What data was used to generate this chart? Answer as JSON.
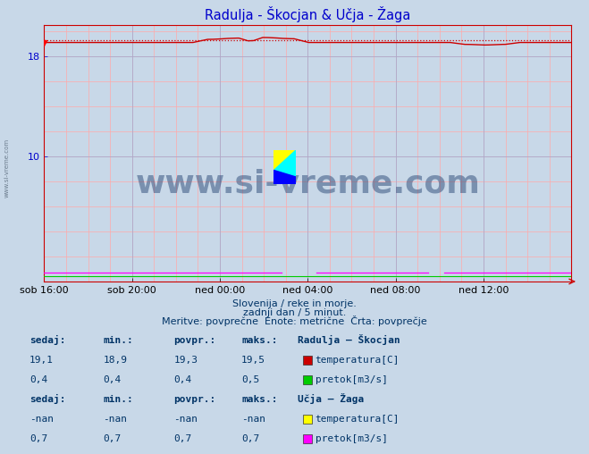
{
  "title": "Radulja - Škocjan & Učja - Žaga",
  "title_color": "#0000cc",
  "bg_color": "#c8d8e8",
  "plot_bg_color": "#c8d8e8",
  "xlabel_ticks": [
    "sob 16:00",
    "sob 20:00",
    "ned 00:00",
    "ned 04:00",
    "ned 08:00",
    "ned 12:00"
  ],
  "yticks": [
    10,
    18
  ],
  "ymin": 0,
  "ymax": 20.5,
  "n_points": 288,
  "line_radulja_temp_color": "#cc0000",
  "line_radulja_pretok_color": "#00cc00",
  "line_ucja_pretok_color": "#ff00ff",
  "avg_line_color": "#cc0000",
  "watermark_text": "www.si-vreme.com",
  "watermark_color": "#1a3a6a",
  "watermark_alpha": 0.45,
  "sidebar_text": "www.si-vreme.com",
  "subtitle1": "Slovenija / reke in morje.",
  "subtitle2": "zadnji dan / 5 minut.",
  "subtitle3": "Meritve: povprečne  Enote: metrične  Črta: povprečje",
  "table_header": [
    "sedaj:",
    "min.:",
    "povpr.:",
    "maks.:"
  ],
  "station1_name": "Radulja – Škocjan",
  "station1_rows": [
    {
      "sedaj": "19,1",
      "min": "18,9",
      "povpr": "19,3",
      "maks": "19,5",
      "label": "temperatura[C]",
      "color": "#cc0000"
    },
    {
      "sedaj": "0,4",
      "min": "0,4",
      "povpr": "0,4",
      "maks": "0,5",
      "label": "pretok[m3/s]",
      "color": "#00cc00"
    }
  ],
  "station2_name": "Učja – Žaga",
  "station2_rows": [
    {
      "sedaj": "-nan",
      "min": "-nan",
      "povpr": "-nan",
      "maks": "-nan",
      "label": "temperatura[C]",
      "color": "#ffff00"
    },
    {
      "sedaj": "0,7",
      "min": "0,7",
      "povpr": "0,7",
      "maks": "0,7",
      "label": "pretok[m3/s]",
      "color": "#ff00ff"
    }
  ],
  "spine_color": "#cc0000",
  "tick_label_color": "#0000cc",
  "grid_pink": "#ffaaaa",
  "grid_blue": "#aaaacc"
}
